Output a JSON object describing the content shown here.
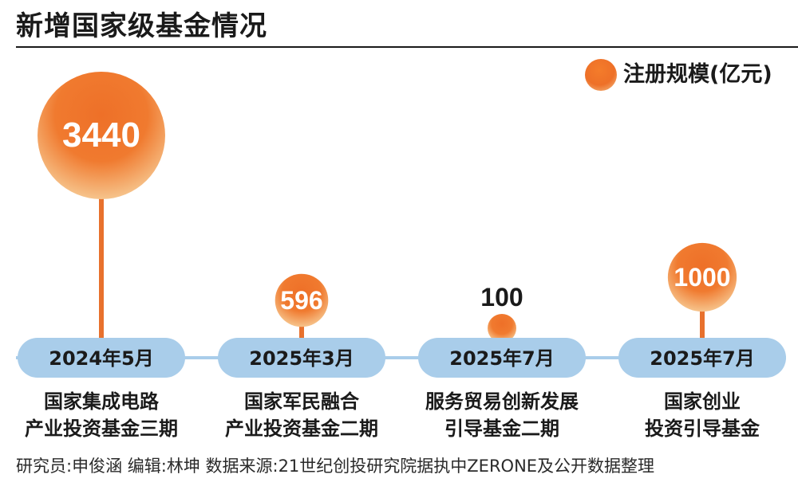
{
  "title": "新增国家级基金情况",
  "legend_label": "注册规模(亿元)",
  "footer": "研究员:申俊涵  编辑:林坤  数据来源:21世纪创投研究院据执中ZERONE及公开数据整理",
  "colors": {
    "bubble_center": "#ee7028",
    "bubble_edge": "#f6c48c",
    "stem": "#e8712d",
    "pill": "#a9cdea",
    "timeline": "#a9cdea",
    "text": "#1a1a1a"
  },
  "chart_data": {
    "type": "bubble-timeline",
    "series": [
      {
        "name": "注册规模(亿元)",
        "values": [
          3440,
          596,
          100,
          1000
        ]
      }
    ],
    "items": [
      {
        "date": "2024年5月",
        "value": 3440,
        "value_label": "3440",
        "name_lines": [
          "国家集成电路",
          "产业投资基金三期"
        ]
      },
      {
        "date": "2025年3月",
        "value": 596,
        "value_label": "596",
        "name_lines": [
          "国家军民融合",
          "产业投资基金二期"
        ]
      },
      {
        "date": "2025年7月",
        "value": 100,
        "value_label": "100",
        "name_lines": [
          "服务贸易创新发展",
          "引导基金二期"
        ]
      },
      {
        "date": "2025年7月",
        "value": 1000,
        "value_label": "1000",
        "name_lines": [
          "国家创业",
          "投资引导基金"
        ]
      }
    ]
  }
}
